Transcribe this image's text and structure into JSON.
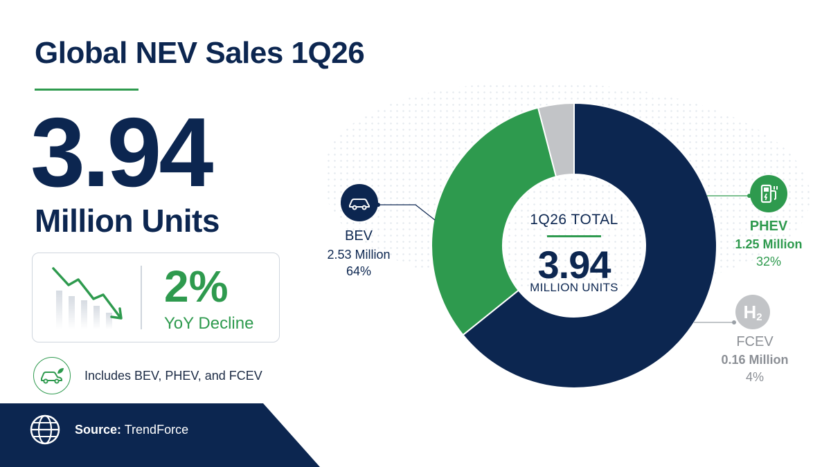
{
  "title": "Global NEV Sales 1Q26",
  "headline": {
    "value": "3.94",
    "unit": "Million Units"
  },
  "yoy": {
    "value": "2%",
    "label": "YoY Decline",
    "icon": "downtrend-chart-icon"
  },
  "includes": {
    "icon": "eco-car-icon",
    "text": "Includes BEV, PHEV, and FCEV"
  },
  "source": {
    "icon": "globe-icon",
    "label": "Source:",
    "value": "TrendForce"
  },
  "colors": {
    "navy": "#0c2650",
    "green": "#2e9a4e",
    "gray": "#c2c4c7"
  },
  "chart_data": {
    "type": "pie",
    "center": {
      "top": "1Q26 TOTAL",
      "value": "3.94",
      "unit": "MILLION UNITS"
    },
    "slices": [
      {
        "name": "BEV",
        "value": 2.53,
        "value_label": "2.53 Million",
        "percent": 64,
        "percent_label": "64%",
        "color": "#0c2650",
        "icon": "car-icon"
      },
      {
        "name": "PHEV",
        "value": 1.25,
        "value_label": "1.25 Million",
        "percent": 32,
        "percent_label": "32%",
        "color": "#2e9a4e",
        "icon": "charging-station-icon"
      },
      {
        "name": "FCEV",
        "value": 0.16,
        "value_label": "0.16 Million",
        "percent": 4,
        "percent_label": "4%",
        "color": "#c2c4c7",
        "icon": "hydrogen-icon"
      }
    ],
    "hydrogen_icon_text": "H",
    "hydrogen_icon_sub": "2"
  }
}
